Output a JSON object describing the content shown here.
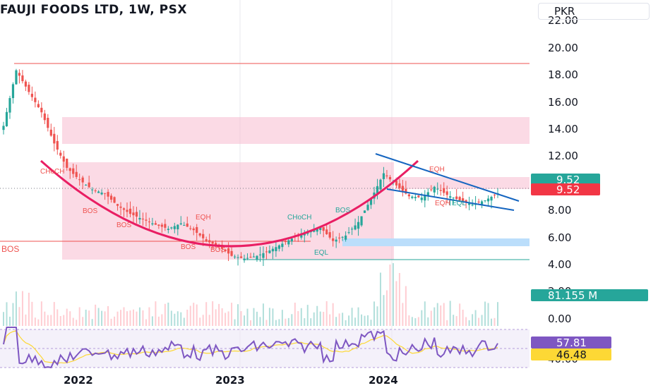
{
  "header": {
    "title": "FAUJI FOODS LTD, 1W, PSX",
    "currency": "PKR"
  },
  "price_axis": {
    "ticks": [
      "22.00",
      "20.00",
      "18.00",
      "16.00",
      "14.00",
      "12.00",
      "8.00",
      "6.00",
      "4.00"
    ],
    "last_price_tag": "9.52",
    "last_price_tag_alt": "9.52"
  },
  "volume_axis": {
    "ticks": [
      "2.00",
      "0.00"
    ],
    "volume_tag": "81.155 M"
  },
  "rsi_axis": {
    "ticks": [
      "40.00"
    ],
    "rsi_tag": "57.81",
    "rsi_ma_tag": "46.48"
  },
  "time_axis": {
    "labels": [
      "2022",
      "2023",
      "2024"
    ]
  },
  "annotations": {
    "choch_1": "CHoCH",
    "bos_1": "BOS",
    "bos_2": "BOS",
    "bos_left": "BOS",
    "bos_3": "BOS",
    "eqh_1": "EQH",
    "bos_4": "BOS",
    "choch_2": "CHoCH",
    "bos_5": "BOS",
    "eql": "EQL",
    "eqh_2": "EQH",
    "eqh_3": "EQH",
    "eql_2": "EQL"
  },
  "colors": {
    "bull": "#26a69a",
    "bear": "#ef5350",
    "cup_line": "#e91e63",
    "trend_line": "#1565c0",
    "zone_red": "#f8bbd0",
    "zone_blue": "#bbdefb",
    "rsi": "#7e57c2",
    "rsi_ma": "#fdd835",
    "price_tag_green": "#26a69a",
    "price_tag_red": "#f23645"
  },
  "chart_data": [
    {
      "type": "candlestick",
      "title": "FAUJI FOODS LTD, 1W, PSX",
      "timeframe": "1W",
      "x_range": [
        "2021-06",
        "2024-09"
      ],
      "ylim": [
        4,
        22
      ],
      "key_levels": {
        "all_time_high": 18.8,
        "cup_bottom": 4.4,
        "last_price": 9.52
      },
      "series": [
        {
          "name": "price",
          "points": [
            [
              "2021-06",
              14.5
            ],
            [
              "2021-07",
              18.6
            ],
            [
              "2021-08",
              17.0
            ],
            [
              "2021-09",
              15.5
            ],
            [
              "2021-10",
              13.2
            ],
            [
              "2021-11",
              11.4
            ],
            [
              "2021-12",
              10.5
            ],
            [
              "2022-01",
              9.8
            ],
            [
              "2022-02",
              9.5
            ],
            [
              "2022-03",
              8.6
            ],
            [
              "2022-04",
              8.0
            ],
            [
              "2022-05",
              7.6
            ],
            [
              "2022-06",
              7.2
            ],
            [
              "2022-07",
              6.9
            ],
            [
              "2022-08",
              7.3
            ],
            [
              "2022-09",
              6.8
            ],
            [
              "2022-10",
              6.0
            ],
            [
              "2022-11",
              5.6
            ],
            [
              "2022-12",
              4.9
            ],
            [
              "2023-01",
              4.7
            ],
            [
              "2023-02",
              4.9
            ],
            [
              "2023-03",
              5.3
            ],
            [
              "2023-04",
              5.8
            ],
            [
              "2023-05",
              6.3
            ],
            [
              "2023-06",
              6.6
            ],
            [
              "2023-07",
              7.0
            ],
            [
              "2023-08",
              6.0
            ],
            [
              "2023-09",
              6.4
            ],
            [
              "2023-10",
              7.4
            ],
            [
              "2023-11",
              9.1
            ],
            [
              "2023-12",
              11.0
            ],
            [
              "2024-01",
              10.1
            ],
            [
              "2024-02",
              9.3
            ],
            [
              "2024-03",
              9.2
            ],
            [
              "2024-04",
              10.0
            ],
            [
              "2024-05",
              9.4
            ],
            [
              "2024-06",
              9.0
            ],
            [
              "2024-07",
              8.7
            ],
            [
              "2024-08",
              9.0
            ],
            [
              "2024-09",
              9.52
            ]
          ]
        },
        {
          "name": "rsi",
          "last_value": 57.81,
          "ma_last_value": 46.48
        },
        {
          "name": "volume",
          "last_value": "81.155 M"
        }
      ]
    }
  ]
}
